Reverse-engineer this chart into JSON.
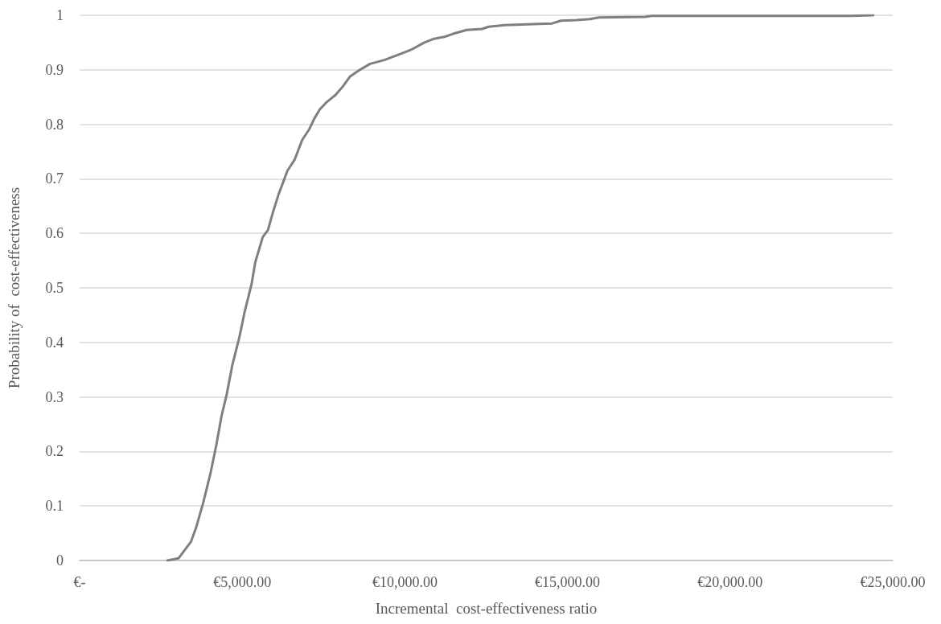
{
  "chart_data": {
    "type": "line",
    "xlabel": "Incremental  cost-effectiveness ratio",
    "ylabel": "Probability of  cost-effectiveness",
    "series": [
      {
        "color": "#7f7f7f",
        "x": [
          2700,
          3040,
          3420,
          3580,
          3800,
          4020,
          4200,
          4360,
          4520,
          4690,
          4910,
          5070,
          5290,
          5400,
          5630,
          5790,
          5950,
          6120,
          6390,
          6610,
          6840,
          7060,
          7220,
          7380,
          7600,
          7870,
          8100,
          8320,
          8590,
          8930,
          9370,
          9810,
          10200,
          10600,
          10900,
          11250,
          11480,
          11900,
          12370,
          12580,
          13060,
          14110,
          14530,
          14790,
          15270,
          15690,
          15960,
          17380,
          17590,
          23700,
          24400
        ],
        "values": [
          0,
          0.004,
          0.034,
          0.06,
          0.106,
          0.159,
          0.211,
          0.264,
          0.304,
          0.357,
          0.409,
          0.455,
          0.508,
          0.547,
          0.593,
          0.606,
          0.64,
          0.672,
          0.715,
          0.735,
          0.771,
          0.791,
          0.811,
          0.827,
          0.841,
          0.854,
          0.87,
          0.888,
          0.899,
          0.911,
          0.918,
          0.928,
          0.937,
          0.95,
          0.957,
          0.961,
          0.966,
          0.973,
          0.975,
          0.979,
          0.982,
          0.984,
          0.985,
          0.99,
          0.991,
          0.993,
          0.996,
          0.997,
          0.999,
          0.999,
          1
        ]
      }
    ],
    "xlim": [
      0,
      25000
    ],
    "xticks": [
      {
        "value": 0,
        "label": "€-"
      },
      {
        "value": 5000,
        "label": "€5,000.00"
      },
      {
        "value": 10000,
        "label": "€10,000.00"
      },
      {
        "value": 15000,
        "label": "€15,000.00"
      },
      {
        "value": 20000,
        "label": "€20,000.00"
      },
      {
        "value": 25000,
        "label": "€25,000.00"
      }
    ],
    "ylim": [
      0,
      1
    ],
    "yticks": [
      0,
      0.1,
      0.2,
      0.3,
      0.4,
      0.5,
      0.6,
      0.7,
      0.8,
      0.9,
      1
    ],
    "grid": "y",
    "marker": "none",
    "line_style": "solid"
  }
}
